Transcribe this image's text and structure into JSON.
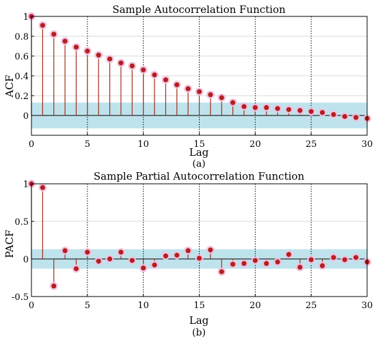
{
  "chart_data": [
    {
      "type": "stem",
      "title": "Sample Autocorrelation Function",
      "xlabel": "Lag",
      "ylabel": "ACF",
      "caption": "(a)",
      "xlim": [
        0,
        30
      ],
      "ylim": [
        -0.2,
        1
      ],
      "x_ticks": [
        0,
        5,
        10,
        15,
        20,
        25,
        30
      ],
      "y_ticks": [
        0,
        0.2,
        0.4,
        0.6,
        0.8,
        1
      ],
      "confidence_band": [
        -0.13,
        0.13
      ],
      "x": [
        0,
        1,
        2,
        3,
        4,
        5,
        6,
        7,
        8,
        9,
        10,
        11,
        12,
        13,
        14,
        15,
        16,
        17,
        18,
        19,
        20,
        21,
        22,
        23,
        24,
        25,
        26,
        27,
        28,
        29,
        30
      ],
      "values": [
        1.0,
        0.91,
        0.82,
        0.75,
        0.69,
        0.65,
        0.61,
        0.57,
        0.53,
        0.5,
        0.46,
        0.41,
        0.36,
        0.31,
        0.27,
        0.24,
        0.21,
        0.18,
        0.13,
        0.09,
        0.08,
        0.08,
        0.07,
        0.06,
        0.05,
        0.04,
        0.03,
        0.01,
        -0.01,
        -0.02,
        -0.03
      ],
      "grid": "vertical dotted at 5, 10, 15, 20, 25; horizontal light"
    },
    {
      "type": "stem",
      "title": "Sample Partial Autocorrelation Function",
      "xlabel": "Lag",
      "ylabel": "PACF",
      "caption": "(b)",
      "xlim": [
        0,
        30
      ],
      "ylim": [
        -0.5,
        1
      ],
      "x_ticks": [
        0,
        5,
        10,
        15,
        20,
        25,
        30
      ],
      "y_ticks": [
        -0.5,
        0,
        0.5,
        1
      ],
      "confidence_band": [
        -0.13,
        0.13
      ],
      "x": [
        0,
        1,
        2,
        3,
        4,
        5,
        6,
        7,
        8,
        9,
        10,
        11,
        12,
        13,
        14,
        15,
        16,
        17,
        18,
        19,
        20,
        21,
        22,
        23,
        24,
        25,
        26,
        27,
        28,
        29,
        30
      ],
      "values": [
        1.0,
        0.95,
        -0.36,
        0.11,
        -0.13,
        0.09,
        -0.03,
        0.0,
        0.09,
        -0.02,
        -0.12,
        -0.08,
        0.04,
        0.05,
        0.11,
        0.01,
        0.12,
        -0.17,
        -0.07,
        -0.06,
        -0.02,
        -0.06,
        -0.04,
        0.06,
        -0.11,
        -0.01,
        -0.09,
        0.02,
        -0.01,
        0.02,
        -0.04
      ],
      "grid": "vertical dotted at 5, 10, 15, 20, 25; horizontal light"
    }
  ],
  "colors": {
    "stem": "#a52a1a",
    "marker": "#b22020",
    "marker_halo": "#f3bfe0",
    "band": "#bfe3ec",
    "grid": "#cccccc",
    "grid_dark": "#000000"
  }
}
